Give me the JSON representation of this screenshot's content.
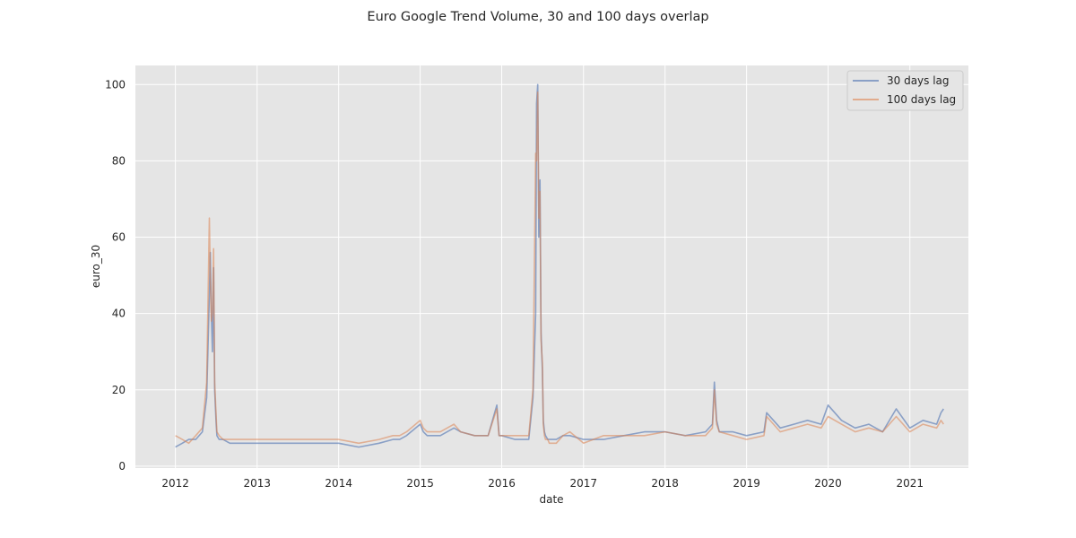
{
  "chart_data": {
    "type": "line",
    "title": "Euro Google Trend Volume, 30 and 100 days overlap",
    "xlabel": "date",
    "ylabel": "euro_30",
    "x_range": [
      "2011-07-06",
      "2021-09-20"
    ],
    "ylim": [
      -0.5,
      105
    ],
    "xticks": [
      "2012",
      "2013",
      "2014",
      "2015",
      "2016",
      "2017",
      "2018",
      "2019",
      "2020",
      "2021"
    ],
    "yticks": [
      0,
      20,
      40,
      60,
      80,
      100
    ],
    "grid": true,
    "legend_position": "top-right",
    "series": [
      {
        "name": "30 days lag",
        "color": "#4c72b0",
        "x": [
          "2012-01-01",
          "2012-02-01",
          "2012-03-01",
          "2012-04-01",
          "2012-05-01",
          "2012-05-20",
          "2012-06-01",
          "2012-06-05",
          "2012-06-10",
          "2012-06-15",
          "2012-06-20",
          "2012-06-25",
          "2012-07-01",
          "2012-07-05",
          "2012-07-15",
          "2012-08-01",
          "2012-09-01",
          "2012-11-01",
          "2013-01-01",
          "2013-04-01",
          "2013-07-01",
          "2013-10-01",
          "2014-01-01",
          "2014-04-01",
          "2014-07-01",
          "2014-09-01",
          "2014-10-01",
          "2014-11-01",
          "2015-01-01",
          "2015-01-15",
          "2015-02-01",
          "2015-04-01",
          "2015-06-01",
          "2015-07-01",
          "2015-09-01",
          "2015-11-01",
          "2015-12-10",
          "2015-12-20",
          "2016-01-01",
          "2016-03-01",
          "2016-05-01",
          "2016-05-20",
          "2016-06-01",
          "2016-06-05",
          "2016-06-10",
          "2016-06-15",
          "2016-06-20",
          "2016-06-25",
          "2016-07-01",
          "2016-07-05",
          "2016-07-10",
          "2016-07-15",
          "2016-07-25",
          "2016-08-01",
          "2016-09-01",
          "2016-10-01",
          "2016-11-01",
          "2017-01-01",
          "2017-04-01",
          "2017-07-01",
          "2017-10-01",
          "2018-01-01",
          "2018-04-01",
          "2018-07-01",
          "2018-08-01",
          "2018-08-10",
          "2018-08-20",
          "2018-09-01",
          "2018-11-01",
          "2019-01-01",
          "2019-03-20",
          "2019-04-01",
          "2019-06-01",
          "2019-08-01",
          "2019-10-01",
          "2019-12-01",
          "2020-01-01",
          "2020-03-01",
          "2020-05-01",
          "2020-07-01",
          "2020-09-01",
          "2020-11-01",
          "2021-01-01",
          "2021-03-01",
          "2021-05-01",
          "2021-05-20",
          "2021-06-01"
        ],
        "y": [
          5,
          6,
          7,
          7,
          9,
          18,
          45,
          56,
          40,
          30,
          52,
          20,
          12,
          8,
          7,
          7,
          6,
          6,
          6,
          6,
          6,
          6,
          6,
          5,
          6,
          7,
          7,
          8,
          11,
          9,
          8,
          8,
          10,
          9,
          8,
          8,
          16,
          8,
          8,
          7,
          7,
          18,
          40,
          95,
          100,
          60,
          75,
          35,
          25,
          12,
          9,
          8,
          7,
          7,
          7,
          8,
          8,
          7,
          7,
          8,
          9,
          9,
          8,
          9,
          11,
          22,
          12,
          9,
          9,
          8,
          9,
          14,
          10,
          11,
          12,
          11,
          16,
          12,
          10,
          11,
          9,
          15,
          10,
          12,
          11,
          14,
          15
        ]
      },
      {
        "name": "100 days lag",
        "color": "#dd8452",
        "x": [
          "2012-01-01",
          "2012-02-01",
          "2012-03-01",
          "2012-04-01",
          "2012-05-01",
          "2012-05-20",
          "2012-06-01",
          "2012-06-05",
          "2012-06-10",
          "2012-06-15",
          "2012-06-20",
          "2012-06-25",
          "2012-07-01",
          "2012-07-05",
          "2012-07-15",
          "2012-08-01",
          "2012-09-01",
          "2012-11-01",
          "2013-01-01",
          "2013-04-01",
          "2013-07-01",
          "2013-10-01",
          "2014-01-01",
          "2014-04-01",
          "2014-07-01",
          "2014-09-01",
          "2014-10-01",
          "2014-11-01",
          "2015-01-01",
          "2015-01-15",
          "2015-02-01",
          "2015-04-01",
          "2015-06-01",
          "2015-07-01",
          "2015-09-01",
          "2015-11-01",
          "2015-12-10",
          "2015-12-20",
          "2016-01-01",
          "2016-03-01",
          "2016-05-01",
          "2016-05-20",
          "2016-06-01",
          "2016-06-05",
          "2016-06-10",
          "2016-06-15",
          "2016-06-20",
          "2016-06-25",
          "2016-07-01",
          "2016-07-05",
          "2016-07-10",
          "2016-07-15",
          "2016-07-25",
          "2016-08-01",
          "2016-09-01",
          "2016-10-01",
          "2016-11-01",
          "2017-01-01",
          "2017-04-01",
          "2017-07-01",
          "2017-10-01",
          "2018-01-01",
          "2018-04-01",
          "2018-07-01",
          "2018-08-01",
          "2018-08-10",
          "2018-08-20",
          "2018-09-01",
          "2018-11-01",
          "2019-01-01",
          "2019-03-20",
          "2019-04-01",
          "2019-06-01",
          "2019-08-01",
          "2019-10-01",
          "2019-12-01",
          "2020-01-01",
          "2020-03-01",
          "2020-05-01",
          "2020-07-01",
          "2020-09-01",
          "2020-11-01",
          "2021-01-01",
          "2021-03-01",
          "2021-05-01",
          "2021-05-20",
          "2021-06-01"
        ],
        "y": [
          8,
          7,
          6,
          8,
          10,
          22,
          65,
          50,
          38,
          40,
          57,
          22,
          14,
          9,
          8,
          7,
          7,
          7,
          7,
          7,
          7,
          7,
          7,
          6,
          7,
          8,
          8,
          9,
          12,
          10,
          9,
          9,
          11,
          9,
          8,
          8,
          15,
          8,
          8,
          8,
          8,
          20,
          82,
          80,
          98,
          65,
          72,
          33,
          27,
          11,
          8,
          7,
          7,
          6,
          6,
          8,
          9,
          6,
          8,
          8,
          8,
          9,
          8,
          8,
          10,
          20,
          11,
          9,
          8,
          7,
          8,
          13,
          9,
          10,
          11,
          10,
          13,
          11,
          9,
          10,
          9,
          13,
          9,
          11,
          10,
          12,
          11
        ]
      }
    ]
  }
}
